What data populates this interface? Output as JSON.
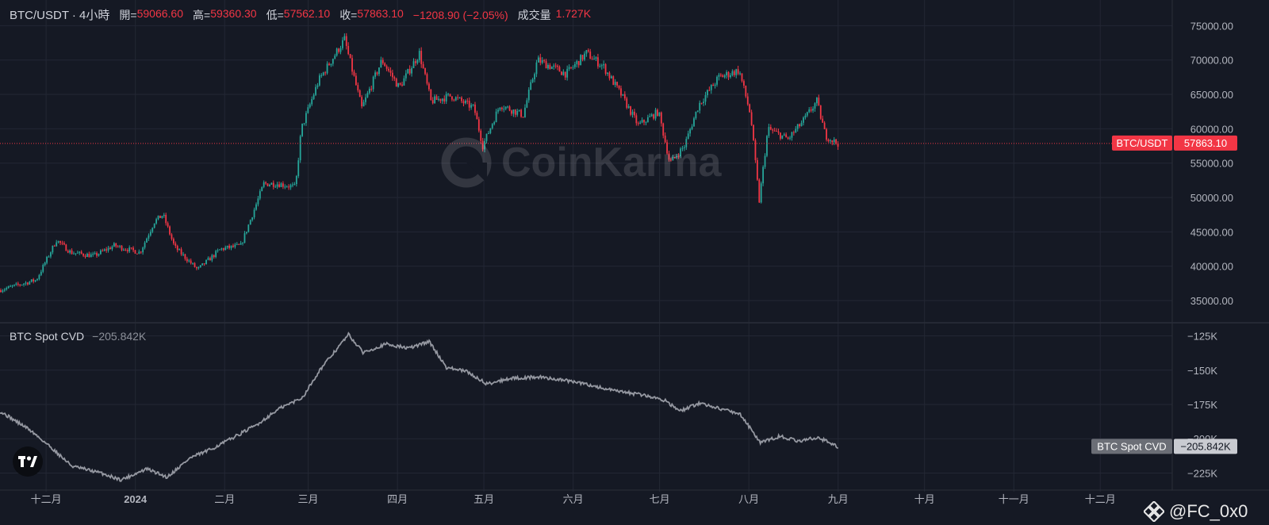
{
  "header": {
    "symbol": "BTC/USDT · 4小時",
    "open_label": "開=",
    "open": "59066.60",
    "high_label": "高=",
    "high": "59360.30",
    "low_label": "低=",
    "low": "57562.10",
    "close_label": "收=",
    "close": "57863.10",
    "change": "−1208.90 (−2.05%)",
    "volume_label": "成交量",
    "volume": "1.727K"
  },
  "watermark": "CoinKarma",
  "price_badge": {
    "name": "BTC/USDT",
    "value": "57863.10"
  },
  "cvd": {
    "name": "BTC Spot CVD",
    "value": "−205.842K",
    "badge_name": "BTC Spot CVD",
    "badge_value": "−205.842K"
  },
  "tag": "@FC_0x0",
  "colors": {
    "up": "#26a69a",
    "down": "#f23645",
    "cvd_line": "#9598a1",
    "background": "#151924"
  },
  "chart_data": [
    {
      "type": "candlestick",
      "title": "BTC/USDT · 4小時",
      "x_tick_labels": [
        "十二月",
        "2024",
        "二月",
        "三月",
        "四月",
        "五月",
        "六月",
        "七月",
        "八月",
        "九月",
        "十月",
        "十一月",
        "十二月"
      ],
      "y_tick_labels": [
        "75000.00",
        "70000.00",
        "65000.00",
        "60000.00",
        "55000.00",
        "50000.00",
        "45000.00",
        "40000.00",
        "35000.00"
      ],
      "ylim": [
        32000,
        76200
      ],
      "last_price": 57863.1,
      "price_path": [
        [
          "2023-11-15",
          36500
        ],
        [
          "2023-11-28",
          38000
        ],
        [
          "2023-12-05",
          43800
        ],
        [
          "2023-12-10",
          42000
        ],
        [
          "2023-12-18",
          41500
        ],
        [
          "2023-12-25",
          43000
        ],
        [
          "2024-01-03",
          42000
        ],
        [
          "2024-01-08",
          46500
        ],
        [
          "2024-01-11",
          47500
        ],
        [
          "2024-01-15",
          42800
        ],
        [
          "2024-01-23",
          39500
        ],
        [
          "2024-01-31",
          42500
        ],
        [
          "2024-02-07",
          43000
        ],
        [
          "2024-02-15",
          52000
        ],
        [
          "2024-02-20",
          52000
        ],
        [
          "2024-02-26",
          51500
        ],
        [
          "2024-02-28",
          60000
        ],
        [
          "2024-03-05",
          67000
        ],
        [
          "2024-03-14",
          73000
        ],
        [
          "2024-03-20",
          63000
        ],
        [
          "2024-03-27",
          70000
        ],
        [
          "2024-04-02",
          66000
        ],
        [
          "2024-04-09",
          71000
        ],
        [
          "2024-04-13",
          64000
        ],
        [
          "2024-04-20",
          64800
        ],
        [
          "2024-04-28",
          63000
        ],
        [
          "2024-05-01",
          57500
        ],
        [
          "2024-05-07",
          63500
        ],
        [
          "2024-05-15",
          62000
        ],
        [
          "2024-05-20",
          70000
        ],
        [
          "2024-05-30",
          68000
        ],
        [
          "2024-06-06",
          71000
        ],
        [
          "2024-06-12",
          69000
        ],
        [
          "2024-06-18",
          65000
        ],
        [
          "2024-06-24",
          60500
        ],
        [
          "2024-07-01",
          62500
        ],
        [
          "2024-07-05",
          55000
        ],
        [
          "2024-07-10",
          57500
        ],
        [
          "2024-07-15",
          63500
        ],
        [
          "2024-07-22",
          67500
        ],
        [
          "2024-07-29",
          68500
        ],
        [
          "2024-08-02",
          62000
        ],
        [
          "2024-08-05",
          49500
        ],
        [
          "2024-08-08",
          60000
        ],
        [
          "2024-08-15",
          58500
        ],
        [
          "2024-08-20",
          61000
        ],
        [
          "2024-08-25",
          64000
        ],
        [
          "2024-08-28",
          59000
        ],
        [
          "2024-09-01",
          57863
        ]
      ]
    },
    {
      "type": "line",
      "title": "BTC Spot CVD",
      "y_tick_labels": [
        "−125K",
        "−150K",
        "−175K",
        "−200K",
        "−225K"
      ],
      "ylim": [
        -234000,
        -116000
      ],
      "last_value": -205842,
      "series": [
        {
          "values": [
            [
              "2023-11-15",
              -180000
            ],
            [
              "2023-11-25",
              -193000
            ],
            [
              "2023-12-02",
              -205000
            ],
            [
              "2023-12-10",
              -220000
            ],
            [
              "2023-12-20",
              -225000
            ],
            [
              "2023-12-27",
              -230000
            ],
            [
              "2024-01-05",
              -222000
            ],
            [
              "2024-01-12",
              -228000
            ],
            [
              "2024-01-20",
              -214000
            ],
            [
              "2024-01-27",
              -208000
            ],
            [
              "2024-02-05",
              -198000
            ],
            [
              "2024-02-12",
              -190000
            ],
            [
              "2024-02-20",
              -178000
            ],
            [
              "2024-02-28",
              -170000
            ],
            [
              "2024-03-05",
              -150000
            ],
            [
              "2024-03-15",
              -124000
            ],
            [
              "2024-03-20",
              -137000
            ],
            [
              "2024-03-28",
              -131000
            ],
            [
              "2024-04-05",
              -134000
            ],
            [
              "2024-04-12",
              -129000
            ],
            [
              "2024-04-18",
              -148000
            ],
            [
              "2024-04-25",
              -151000
            ],
            [
              "2024-05-02",
              -160000
            ],
            [
              "2024-05-10",
              -156000
            ],
            [
              "2024-05-20",
              -155000
            ],
            [
              "2024-05-28",
              -157000
            ],
            [
              "2024-06-05",
              -160000
            ],
            [
              "2024-06-15",
              -165000
            ],
            [
              "2024-06-25",
              -168000
            ],
            [
              "2024-07-03",
              -172000
            ],
            [
              "2024-07-08",
              -180000
            ],
            [
              "2024-07-15",
              -174000
            ],
            [
              "2024-07-22",
              -178000
            ],
            [
              "2024-07-29",
              -182000
            ],
            [
              "2024-08-05",
              -203000
            ],
            [
              "2024-08-12",
              -198000
            ],
            [
              "2024-08-18",
              -202000
            ],
            [
              "2024-08-25",
              -199000
            ],
            [
              "2024-09-01",
              -205842
            ]
          ]
        }
      ]
    }
  ]
}
